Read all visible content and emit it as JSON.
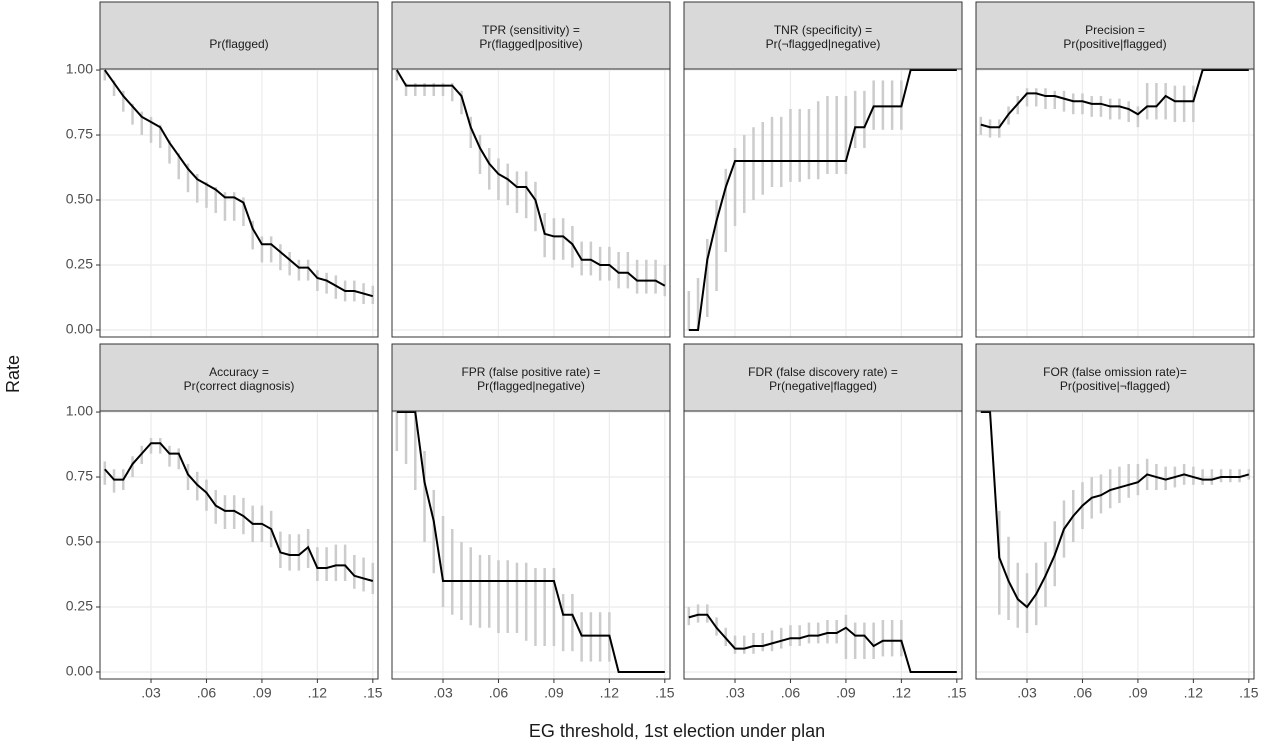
{
  "x_label": "EG threshold, 1st election under plan",
  "y_label": "Rate",
  "xlim": [
    0.0024,
    0.1528
  ],
  "ylim": [
    -0.027,
    1.004
  ],
  "xticks": [
    {
      "value": 0.03,
      "label": ".03"
    },
    {
      "value": 0.06,
      "label": ".06"
    },
    {
      "value": 0.09,
      "label": ".09"
    },
    {
      "value": 0.12,
      "label": ".12"
    },
    {
      "value": 0.15,
      "label": ".15"
    }
  ],
  "yticks": [
    {
      "value": 0,
      "label": "0.00"
    },
    {
      "value": 0.25,
      "label": "0.25"
    },
    {
      "value": 0.5,
      "label": "0.50"
    },
    {
      "value": 0.75,
      "label": "0.75"
    },
    {
      "value": 1,
      "label": "1.00"
    }
  ],
  "x": [
    0.005,
    0.01,
    0.015,
    0.02,
    0.025,
    0.03,
    0.035,
    0.04,
    0.045,
    0.05,
    0.055,
    0.06,
    0.065,
    0.07,
    0.075,
    0.08,
    0.085,
    0.09,
    0.095,
    0.1,
    0.105,
    0.11,
    0.115,
    0.12,
    0.125,
    0.13,
    0.135,
    0.14,
    0.145,
    0.15
  ],
  "chart_data": [
    {
      "type": "line",
      "title": [
        "Pr(flagged)"
      ],
      "color": "#000000",
      "values": [
        1.0,
        0.95,
        0.9,
        0.86,
        0.82,
        0.8,
        0.78,
        0.72,
        0.67,
        0.62,
        0.58,
        0.56,
        0.54,
        0.51,
        0.51,
        0.49,
        0.39,
        0.33,
        0.33,
        0.3,
        0.27,
        0.24,
        0.24,
        0.2,
        0.19,
        0.17,
        0.15,
        0.15,
        0.14,
        0.13
      ],
      "low": [
        0.96,
        0.9,
        0.84,
        0.79,
        0.75,
        0.72,
        0.7,
        0.64,
        0.58,
        0.53,
        0.49,
        0.47,
        0.45,
        0.42,
        0.42,
        0.4,
        0.31,
        0.26,
        0.26,
        0.23,
        0.21,
        0.19,
        0.19,
        0.15,
        0.14,
        0.12,
        0.11,
        0.11,
        0.1,
        0.1
      ],
      "high": [
        1.0,
        0.96,
        0.92,
        0.87,
        0.84,
        0.82,
        0.79,
        0.73,
        0.68,
        0.64,
        0.6,
        0.57,
        0.55,
        0.53,
        0.53,
        0.51,
        0.42,
        0.36,
        0.36,
        0.33,
        0.3,
        0.27,
        0.27,
        0.23,
        0.22,
        0.21,
        0.19,
        0.19,
        0.18,
        0.17
      ]
    },
    {
      "type": "line",
      "title": [
        "TPR (sensitivity) =",
        "Pr(flagged|positive)"
      ],
      "color": "#000000",
      "values": [
        1.0,
        0.94,
        0.94,
        0.94,
        0.94,
        0.94,
        0.94,
        0.9,
        0.78,
        0.7,
        0.64,
        0.6,
        0.58,
        0.55,
        0.55,
        0.5,
        0.37,
        0.36,
        0.36,
        0.33,
        0.27,
        0.27,
        0.25,
        0.25,
        0.22,
        0.22,
        0.19,
        0.19,
        0.19,
        0.17
      ],
      "low": [
        0.96,
        0.9,
        0.9,
        0.9,
        0.9,
        0.9,
        0.88,
        0.83,
        0.7,
        0.6,
        0.54,
        0.5,
        0.48,
        0.45,
        0.43,
        0.38,
        0.28,
        0.27,
        0.27,
        0.24,
        0.21,
        0.21,
        0.19,
        0.19,
        0.16,
        0.16,
        0.14,
        0.14,
        0.14,
        0.13
      ],
      "high": [
        1.0,
        0.95,
        0.95,
        0.95,
        0.95,
        0.95,
        0.95,
        0.92,
        0.82,
        0.75,
        0.7,
        0.66,
        0.64,
        0.61,
        0.61,
        0.57,
        0.45,
        0.43,
        0.43,
        0.4,
        0.34,
        0.34,
        0.32,
        0.32,
        0.3,
        0.3,
        0.27,
        0.27,
        0.27,
        0.25
      ]
    },
    {
      "type": "line",
      "title": [
        "TNR (specificity) =",
        "Pr(¬flagged|negative)"
      ],
      "color": "#000000",
      "values": [
        0,
        0,
        0.27,
        0.42,
        0.55,
        0.65,
        0.65,
        0.65,
        0.65,
        0.65,
        0.65,
        0.65,
        0.65,
        0.65,
        0.65,
        0.65,
        0.65,
        0.65,
        0.78,
        0.78,
        0.86,
        0.86,
        0.86,
        0.86,
        1,
        1,
        1,
        1,
        1,
        1
      ],
      "low": [
        0,
        0,
        0.05,
        0.15,
        0.3,
        0.4,
        0.45,
        0.5,
        0.52,
        0.55,
        0.55,
        0.57,
        0.57,
        0.58,
        0.58,
        0.6,
        0.6,
        0.6,
        0.7,
        0.7,
        0.77,
        0.77,
        0.77,
        0.77,
        1,
        1,
        1,
        1,
        1,
        1
      ],
      "high": [
        0.15,
        0.2,
        0.35,
        0.5,
        0.62,
        0.7,
        0.75,
        0.78,
        0.8,
        0.82,
        0.82,
        0.85,
        0.85,
        0.85,
        0.88,
        0.9,
        0.9,
        0.9,
        0.92,
        0.92,
        0.96,
        0.96,
        0.96,
        0.96,
        1,
        1,
        1,
        1,
        1,
        1
      ]
    },
    {
      "type": "line",
      "title": [
        "Precision =",
        "Pr(positive|flagged)"
      ],
      "color": "#000000",
      "values": [
        0.79,
        0.78,
        0.78,
        0.83,
        0.87,
        0.91,
        0.91,
        0.9,
        0.9,
        0.89,
        0.88,
        0.88,
        0.87,
        0.87,
        0.86,
        0.86,
        0.85,
        0.83,
        0.86,
        0.86,
        0.9,
        0.88,
        0.88,
        0.88,
        1,
        1,
        1,
        1,
        1,
        1
      ],
      "low": [
        0.75,
        0.74,
        0.74,
        0.79,
        0.83,
        0.86,
        0.86,
        0.85,
        0.85,
        0.84,
        0.83,
        0.83,
        0.82,
        0.82,
        0.81,
        0.81,
        0.8,
        0.78,
        0.81,
        0.81,
        0.81,
        0.8,
        0.8,
        0.8,
        1,
        1,
        1,
        1,
        1,
        1
      ],
      "high": [
        0.82,
        0.81,
        0.81,
        0.86,
        0.9,
        0.93,
        0.93,
        0.93,
        0.92,
        0.92,
        0.91,
        0.91,
        0.9,
        0.9,
        0.89,
        0.89,
        0.88,
        0.86,
        0.95,
        0.95,
        0.95,
        0.94,
        0.94,
        0.94,
        1,
        1,
        1,
        1,
        1,
        1
      ]
    },
    {
      "type": "line",
      "title": [
        "Accuracy =",
        "Pr(correct diagnosis)"
      ],
      "color": "#000000",
      "values": [
        0.78,
        0.74,
        0.74,
        0.8,
        0.84,
        0.88,
        0.88,
        0.84,
        0.84,
        0.76,
        0.72,
        0.69,
        0.64,
        0.62,
        0.62,
        0.6,
        0.57,
        0.57,
        0.55,
        0.46,
        0.45,
        0.45,
        0.48,
        0.4,
        0.4,
        0.41,
        0.41,
        0.37,
        0.36,
        0.35
      ],
      "low": [
        0.72,
        0.69,
        0.7,
        0.75,
        0.8,
        0.84,
        0.84,
        0.79,
        0.78,
        0.7,
        0.66,
        0.62,
        0.57,
        0.55,
        0.55,
        0.53,
        0.5,
        0.5,
        0.48,
        0.4,
        0.39,
        0.39,
        0.4,
        0.35,
        0.35,
        0.35,
        0.35,
        0.32,
        0.31,
        0.3
      ],
      "high": [
        0.81,
        0.78,
        0.78,
        0.83,
        0.87,
        0.9,
        0.9,
        0.87,
        0.86,
        0.8,
        0.77,
        0.74,
        0.7,
        0.68,
        0.68,
        0.67,
        0.64,
        0.64,
        0.62,
        0.54,
        0.53,
        0.53,
        0.55,
        0.48,
        0.48,
        0.49,
        0.49,
        0.45,
        0.44,
        0.42
      ]
    },
    {
      "type": "line",
      "title": [
        "FPR (false positive rate) =",
        "Pr(flagged|negative)"
      ],
      "color": "#000000",
      "values": [
        1,
        1,
        1,
        0.73,
        0.58,
        0.35,
        0.35,
        0.35,
        0.35,
        0.35,
        0.35,
        0.35,
        0.35,
        0.35,
        0.35,
        0.35,
        0.35,
        0.35,
        0.22,
        0.22,
        0.14,
        0.14,
        0.14,
        0.14,
        0,
        0,
        0,
        0,
        0,
        0
      ],
      "low": [
        0.85,
        0.8,
        0.7,
        0.5,
        0.38,
        0.25,
        0.22,
        0.2,
        0.18,
        0.17,
        0.17,
        0.15,
        0.15,
        0.15,
        0.12,
        0.1,
        0.1,
        0.1,
        0.08,
        0.08,
        0.04,
        0.04,
        0.04,
        0.04,
        0,
        0,
        0,
        0,
        0,
        0
      ],
      "high": [
        1,
        1,
        1,
        0.85,
        0.7,
        0.6,
        0.55,
        0.5,
        0.48,
        0.45,
        0.45,
        0.43,
        0.43,
        0.42,
        0.42,
        0.4,
        0.4,
        0.4,
        0.3,
        0.3,
        0.23,
        0.23,
        0.23,
        0.23,
        0,
        0,
        0,
        0,
        0,
        0
      ]
    },
    {
      "type": "line",
      "title": [
        "FDR (false discovery rate) =",
        "Pr(negative|flagged)"
      ],
      "color": "#000000",
      "values": [
        0.21,
        0.22,
        0.22,
        0.17,
        0.13,
        0.09,
        0.09,
        0.1,
        0.1,
        0.11,
        0.12,
        0.13,
        0.13,
        0.14,
        0.14,
        0.15,
        0.15,
        0.17,
        0.14,
        0.14,
        0.1,
        0.12,
        0.12,
        0.12,
        0,
        0,
        0,
        0,
        0,
        0
      ],
      "low": [
        0.18,
        0.19,
        0.19,
        0.14,
        0.1,
        0.07,
        0.07,
        0.07,
        0.08,
        0.08,
        0.09,
        0.1,
        0.1,
        0.11,
        0.11,
        0.11,
        0.11,
        0.05,
        0.05,
        0.05,
        0.05,
        0.06,
        0.06,
        0.06,
        0,
        0,
        0,
        0,
        0,
        0
      ],
      "high": [
        0.25,
        0.26,
        0.26,
        0.21,
        0.17,
        0.14,
        0.14,
        0.15,
        0.15,
        0.16,
        0.17,
        0.18,
        0.18,
        0.19,
        0.19,
        0.2,
        0.2,
        0.22,
        0.19,
        0.19,
        0.19,
        0.2,
        0.2,
        0.2,
        0,
        0,
        0,
        0,
        0,
        0
      ]
    },
    {
      "type": "line",
      "title": [
        "FOR (false omission rate)=",
        "Pr(positive|¬flagged)"
      ],
      "color": "#000000",
      "values": [
        1,
        1,
        0.44,
        0.35,
        0.28,
        0.25,
        0.3,
        0.37,
        0.45,
        0.55,
        0.6,
        0.64,
        0.67,
        0.68,
        0.7,
        0.71,
        0.72,
        0.73,
        0.76,
        0.75,
        0.74,
        0.75,
        0.76,
        0.75,
        0.74,
        0.74,
        0.75,
        0.75,
        0.75,
        0.76
      ],
      "low": [
        1,
        1,
        0.22,
        0.2,
        0.17,
        0.15,
        0.18,
        0.25,
        0.33,
        0.44,
        0.5,
        0.55,
        0.59,
        0.61,
        0.63,
        0.65,
        0.67,
        0.68,
        0.7,
        0.7,
        0.7,
        0.71,
        0.72,
        0.72,
        0.72,
        0.72,
        0.73,
        0.73,
        0.73,
        0.74
      ],
      "high": [
        1,
        1,
        0.62,
        0.52,
        0.42,
        0.38,
        0.42,
        0.5,
        0.58,
        0.66,
        0.7,
        0.73,
        0.75,
        0.76,
        0.78,
        0.79,
        0.8,
        0.8,
        0.82,
        0.8,
        0.79,
        0.79,
        0.8,
        0.79,
        0.78,
        0.78,
        0.78,
        0.78,
        0.78,
        0.78
      ]
    }
  ]
}
